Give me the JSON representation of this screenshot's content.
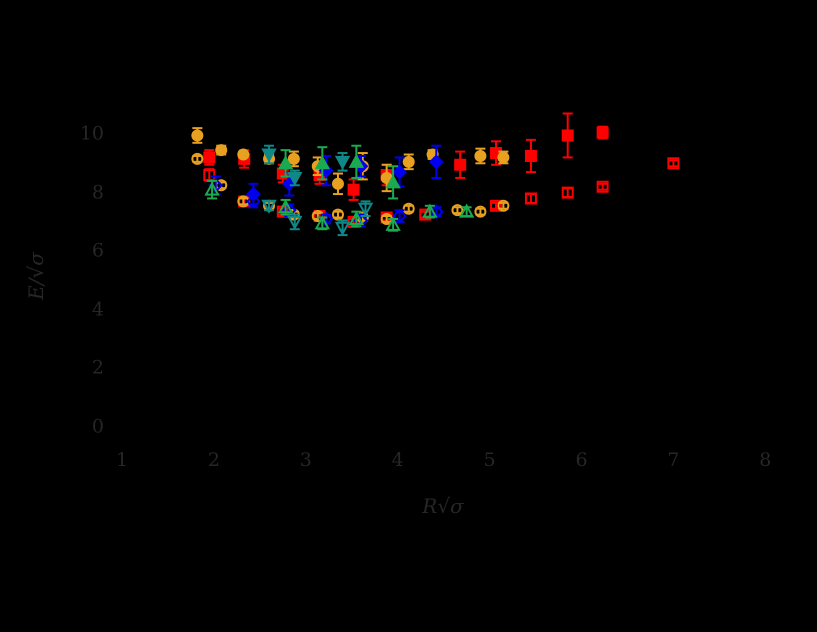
{
  "chart_data": {
    "type": "scatter",
    "title": "",
    "xlabel": "R√σ",
    "ylabel": "E/√σ",
    "xlim": [
      1,
      8
    ],
    "ylim": [
      0,
      10
    ],
    "xticks": [
      "1",
      "2",
      "3",
      "4",
      "5",
      "6",
      "7",
      "8"
    ],
    "yticks": [
      "0",
      "2",
      "4",
      "6",
      "8",
      "10"
    ],
    "grid": false,
    "legend": null,
    "background": "#000000",
    "series": [
      {
        "name": "red-filled-square",
        "color": "#ff0000",
        "marker": "square",
        "filled": true,
        "points": [
          {
            "x": 1.95,
            "y": 9.2,
            "err": 0.25
          },
          {
            "x": 2.33,
            "y": 9.15,
            "err": 0.3
          },
          {
            "x": 2.75,
            "y": 8.65,
            "err": 0.3
          },
          {
            "x": 3.15,
            "y": 8.6,
            "err": 0.3
          },
          {
            "x": 3.52,
            "y": 8.1,
            "err": 0.35
          },
          {
            "x": 3.88,
            "y": 8.6,
            "err": 0.35
          },
          {
            "x": 4.68,
            "y": 8.95,
            "err": 0.45
          },
          {
            "x": 5.07,
            "y": 9.35,
            "err": 0.4
          },
          {
            "x": 5.45,
            "y": 9.25,
            "err": 0.55
          },
          {
            "x": 5.85,
            "y": 9.95,
            "err": 0.75
          },
          {
            "x": 6.23,
            "y": 10.05,
            "err": 0.2
          }
        ]
      },
      {
        "name": "red-open-square",
        "color": "#ff0000",
        "marker": "square",
        "filled": false,
        "points": [
          {
            "x": 1.95,
            "y": 8.6,
            "err": 0.2
          },
          {
            "x": 2.33,
            "y": 7.7,
            "err": 0.1
          },
          {
            "x": 2.75,
            "y": 7.35,
            "err": 0.1
          },
          {
            "x": 3.15,
            "y": 7.2,
            "err": 0.1
          },
          {
            "x": 3.52,
            "y": 7.0,
            "err": 0.1
          },
          {
            "x": 3.88,
            "y": 7.15,
            "err": 0.1
          },
          {
            "x": 4.3,
            "y": 7.25,
            "err": 0.1
          },
          {
            "x": 5.07,
            "y": 7.55,
            "err": 0.1
          },
          {
            "x": 5.45,
            "y": 7.8,
            "err": 0.15
          },
          {
            "x": 5.85,
            "y": 8.0,
            "err": 0.15
          },
          {
            "x": 6.23,
            "y": 8.2,
            "err": 0.1
          },
          {
            "x": 7.0,
            "y": 9.0,
            "err": 0.1
          }
        ]
      },
      {
        "name": "orange-filled-circle",
        "color": "#e8a020",
        "marker": "circle",
        "filled": true,
        "points": [
          {
            "x": 1.82,
            "y": 9.95,
            "err": 0.25
          },
          {
            "x": 2.08,
            "y": 9.45,
            "err": 0.15
          },
          {
            "x": 2.32,
            "y": 9.3,
            "err": 0.1
          },
          {
            "x": 2.6,
            "y": 9.15,
            "err": 0.15
          },
          {
            "x": 2.87,
            "y": 9.15,
            "err": 0.25
          },
          {
            "x": 3.13,
            "y": 8.9,
            "err": 0.3
          },
          {
            "x": 3.35,
            "y": 8.3,
            "err": 0.35
          },
          {
            "x": 3.62,
            "y": 8.9,
            "err": 0.45
          },
          {
            "x": 3.88,
            "y": 8.5,
            "err": 0.45
          },
          {
            "x": 4.12,
            "y": 9.05,
            "err": 0.25
          },
          {
            "x": 4.38,
            "y": 9.3,
            "err": 0.15
          },
          {
            "x": 4.9,
            "y": 9.25,
            "err": 0.25
          },
          {
            "x": 5.15,
            "y": 9.2,
            "err": 0.2
          }
        ]
      },
      {
        "name": "orange-open-circle",
        "color": "#e8a020",
        "marker": "circle",
        "filled": false,
        "points": [
          {
            "x": 1.82,
            "y": 9.15,
            "err": 0.1
          },
          {
            "x": 2.08,
            "y": 8.25,
            "err": 0.1
          },
          {
            "x": 2.32,
            "y": 7.7,
            "err": 0.1
          },
          {
            "x": 2.6,
            "y": 7.55,
            "err": 0.1
          },
          {
            "x": 2.87,
            "y": 7.25,
            "err": 0.1
          },
          {
            "x": 3.13,
            "y": 7.2,
            "err": 0.1
          },
          {
            "x": 3.35,
            "y": 7.25,
            "err": 0.1
          },
          {
            "x": 3.62,
            "y": 7.15,
            "err": 0.1
          },
          {
            "x": 3.88,
            "y": 7.1,
            "err": 0.1
          },
          {
            "x": 4.12,
            "y": 7.45,
            "err": 0.1
          },
          {
            "x": 4.65,
            "y": 7.4,
            "err": 0.1
          },
          {
            "x": 4.9,
            "y": 7.35,
            "err": 0.1
          },
          {
            "x": 5.15,
            "y": 7.55,
            "err": 0.1
          }
        ]
      },
      {
        "name": "blue-filled-diamond",
        "color": "#0000ee",
        "marker": "diamond",
        "filled": true,
        "points": [
          {
            "x": 2.43,
            "y": 7.95,
            "err": 0.35
          },
          {
            "x": 2.82,
            "y": 8.3,
            "err": 0.4
          },
          {
            "x": 3.22,
            "y": 8.75,
            "err": 0.5
          },
          {
            "x": 3.6,
            "y": 8.9,
            "err": 0.35
          },
          {
            "x": 4.02,
            "y": 8.7,
            "err": 0.5
          },
          {
            "x": 4.42,
            "y": 9.05,
            "err": 0.55
          }
        ]
      },
      {
        "name": "blue-open-diamond",
        "color": "#0000ee",
        "marker": "diamond",
        "filled": false,
        "points": [
          {
            "x": 2.02,
            "y": 8.25,
            "err": 0.3
          },
          {
            "x": 2.43,
            "y": 7.7,
            "err": 0.2
          },
          {
            "x": 2.82,
            "y": 7.4,
            "err": 0.2
          },
          {
            "x": 3.22,
            "y": 7.1,
            "err": 0.15
          },
          {
            "x": 3.6,
            "y": 7.05,
            "err": 0.2
          },
          {
            "x": 4.02,
            "y": 7.2,
            "err": 0.2
          },
          {
            "x": 4.42,
            "y": 7.35,
            "err": 0.15
          }
        ]
      },
      {
        "name": "green-filled-triangle-up",
        "color": "#1aaa50",
        "marker": "triangle-up",
        "filled": true,
        "points": [
          {
            "x": 2.78,
            "y": 9.0,
            "err": 0.45
          },
          {
            "x": 3.18,
            "y": 9.0,
            "err": 0.55
          },
          {
            "x": 3.55,
            "y": 9.05,
            "err": 0.55
          },
          {
            "x": 3.95,
            "y": 8.35,
            "err": 0.55
          }
        ]
      },
      {
        "name": "green-open-triangle-up",
        "color": "#1aaa50",
        "marker": "triangle-up",
        "filled": false,
        "points": [
          {
            "x": 1.98,
            "y": 8.1,
            "err": 0.3
          },
          {
            "x": 2.78,
            "y": 7.5,
            "err": 0.25
          },
          {
            "x": 3.18,
            "y": 6.95,
            "err": 0.2
          },
          {
            "x": 3.55,
            "y": 7.1,
            "err": 0.25
          },
          {
            "x": 3.95,
            "y": 6.9,
            "err": 0.2
          },
          {
            "x": 4.35,
            "y": 7.35,
            "err": 0.2
          },
          {
            "x": 4.75,
            "y": 7.35,
            "err": 0.15
          }
        ]
      },
      {
        "name": "teal-filled-triangle-down",
        "color": "#108888",
        "marker": "triangle-down",
        "filled": true,
        "points": [
          {
            "x": 2.6,
            "y": 9.3,
            "err": 0.3
          },
          {
            "x": 2.88,
            "y": 8.5,
            "err": 0.25
          },
          {
            "x": 3.4,
            "y": 9.05,
            "err": 0.3
          }
        ]
      },
      {
        "name": "teal-open-triangle-down",
        "color": "#108888",
        "marker": "triangle-down",
        "filled": false,
        "points": [
          {
            "x": 2.6,
            "y": 7.55,
            "err": 0.15
          },
          {
            "x": 2.88,
            "y": 7.0,
            "err": 0.25
          },
          {
            "x": 3.4,
            "y": 6.8,
            "err": 0.25
          },
          {
            "x": 3.65,
            "y": 7.45,
            "err": 0.25
          }
        ]
      }
    ]
  }
}
